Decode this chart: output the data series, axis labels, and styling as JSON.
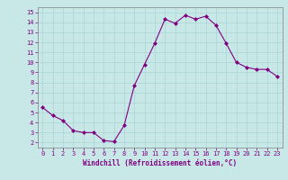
{
  "x": [
    0,
    1,
    2,
    3,
    4,
    5,
    6,
    7,
    8,
    9,
    10,
    11,
    12,
    13,
    14,
    15,
    16,
    17,
    18,
    19,
    20,
    21,
    22,
    23
  ],
  "y": [
    5.5,
    4.7,
    4.2,
    3.2,
    3.0,
    3.0,
    2.2,
    2.1,
    3.7,
    7.7,
    9.8,
    11.9,
    14.3,
    13.9,
    14.7,
    14.3,
    14.6,
    13.7,
    11.9,
    10.0,
    9.5,
    9.3,
    9.3,
    8.6
  ],
  "line_color": "#800080",
  "marker": "D",
  "marker_size": 2,
  "bg_color": "#c8e8e8",
  "grid_color": "#b0d8d8",
  "xlabel": "Windchill (Refroidissement éolien,°C)",
  "xlabel_color": "#800080",
  "tick_color": "#800080",
  "spine_color": "#808080",
  "ylim": [
    1.5,
    15.5
  ],
  "xlim": [
    -0.5,
    23.5
  ],
  "yticks": [
    2,
    3,
    4,
    5,
    6,
    7,
    8,
    9,
    10,
    11,
    12,
    13,
    14,
    15
  ],
  "xticks": [
    0,
    1,
    2,
    3,
    4,
    5,
    6,
    7,
    8,
    9,
    10,
    11,
    12,
    13,
    14,
    15,
    16,
    17,
    18,
    19,
    20,
    21,
    22,
    23
  ],
  "tick_fontsize": 5.0,
  "xlabel_fontsize": 5.5,
  "xlabel_fontweight": "bold"
}
